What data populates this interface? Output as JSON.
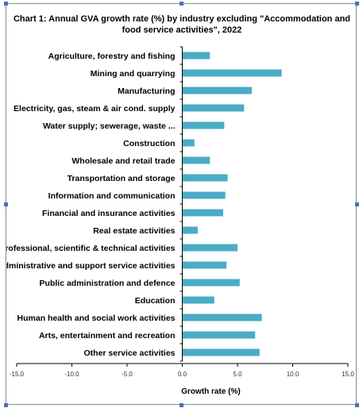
{
  "chart_data": {
    "type": "bar",
    "orientation": "horizontal",
    "title": "Chart 1: Annual GVA growth rate (%) by industry excluding \"Accommodation and food service activities\", 2022",
    "title_lines": [
      "Chart 1: Annual GVA growth rate (%) by industry excluding \"Accommodation and",
      "food service activities\", 2022"
    ],
    "xlabel": "Growth rate (%)",
    "ylabel": "",
    "xlim": [
      -15,
      15
    ],
    "xticks": [
      -15,
      -10,
      -5,
      0,
      5,
      10,
      15
    ],
    "xtick_labels": [
      "-15.0",
      "-10.0",
      "-5.0",
      "0.0",
      "5.0",
      "10.0",
      "15.0"
    ],
    "grid": false,
    "legend": "none",
    "bar_color": "#4bacc6",
    "categories": [
      "Agriculture, forestry and fishing",
      "Mining and quarrying",
      "Manufacturing",
      "Electricity, gas, steam & air cond. supply",
      "Water supply; sewerage, waste ...",
      "Construction",
      "Wholesale and retail trade",
      "Transportation and storage",
      "Information and communication",
      "Financial and insurance activities",
      "Real estate activities",
      "Professional, scientific & technical activities",
      "Administrative and support service activities",
      "Public administration and defence",
      "Education",
      "Human health and social work activities",
      "Arts, entertainment and recreation",
      "Other service activities"
    ],
    "values": [
      2.5,
      9.0,
      6.3,
      5.6,
      3.8,
      1.1,
      2.5,
      4.1,
      3.9,
      3.7,
      1.4,
      5.0,
      4.0,
      5.2,
      2.9,
      7.2,
      6.6,
      7.0
    ]
  }
}
